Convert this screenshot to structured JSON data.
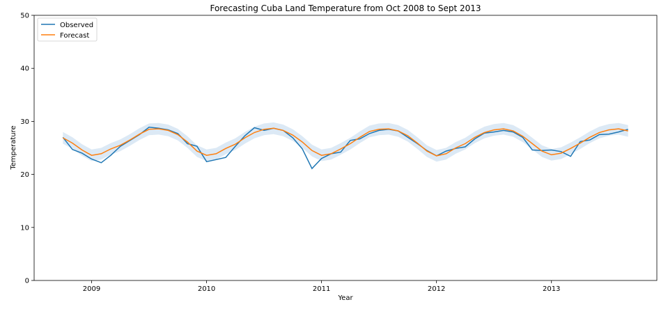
{
  "chart_data": {
    "type": "line",
    "title": "Forecasting Cuba Land Temperature from Oct 2008 to Sept 2013",
    "xlabel": "Year",
    "ylabel": "Temperature",
    "xticks": [
      "2009",
      "2010",
      "2011",
      "2012",
      "2013"
    ],
    "yticks": [
      "0",
      "10",
      "20",
      "30",
      "40",
      "50"
    ],
    "ylim": [
      0,
      50
    ],
    "xlim": [
      "2008-07-01",
      "2013-12-01"
    ],
    "x": [
      "2008-10",
      "2008-11",
      "2008-12",
      "2009-01",
      "2009-02",
      "2009-03",
      "2009-04",
      "2009-05",
      "2009-06",
      "2009-07",
      "2009-08",
      "2009-09",
      "2009-10",
      "2009-11",
      "2009-12",
      "2010-01",
      "2010-02",
      "2010-03",
      "2010-04",
      "2010-05",
      "2010-06",
      "2010-07",
      "2010-08",
      "2010-09",
      "2010-10",
      "2010-11",
      "2010-12",
      "2011-01",
      "2011-02",
      "2011-03",
      "2011-04",
      "2011-05",
      "2011-06",
      "2011-07",
      "2011-08",
      "2011-09",
      "2011-10",
      "2011-11",
      "2011-12",
      "2012-01",
      "2012-02",
      "2012-03",
      "2012-04",
      "2012-05",
      "2012-06",
      "2012-07",
      "2012-08",
      "2012-09",
      "2012-10",
      "2012-11",
      "2012-12",
      "2013-01",
      "2013-02",
      "2013-03",
      "2013-04",
      "2013-05",
      "2013-06",
      "2013-07",
      "2013-08",
      "2013-09"
    ],
    "series": [
      {
        "name": "Observed",
        "color": "#1f77b4",
        "values": [
          27.0,
          24.7,
          24.0,
          22.9,
          22.2,
          23.6,
          25.3,
          26.4,
          27.5,
          28.9,
          28.7,
          28.4,
          27.7,
          25.8,
          25.3,
          22.4,
          22.8,
          23.2,
          25.3,
          27.3,
          28.8,
          28.3,
          28.7,
          28.3,
          26.9,
          24.8,
          21.1,
          23.0,
          23.9,
          24.2,
          26.4,
          26.7,
          27.7,
          28.3,
          28.5,
          28.2,
          27.0,
          25.8,
          24.5,
          23.5,
          24.4,
          24.9,
          25.2,
          26.7,
          27.8,
          28.0,
          28.3,
          28.0,
          27.0,
          24.6,
          24.5,
          24.6,
          24.3,
          23.4,
          26.2,
          26.5,
          27.5,
          27.6,
          28.0,
          28.5
        ]
      },
      {
        "name": "Forecast",
        "color": "#ff7f0e",
        "band_color": "#dce9f5",
        "values": [
          26.9,
          25.9,
          24.6,
          23.6,
          23.9,
          24.8,
          25.5,
          26.5,
          27.6,
          28.5,
          28.6,
          28.3,
          27.5,
          26.1,
          24.4,
          23.6,
          23.9,
          24.9,
          25.7,
          26.9,
          27.9,
          28.5,
          28.7,
          28.3,
          27.4,
          26.1,
          24.5,
          23.6,
          23.9,
          24.8,
          25.8,
          27.0,
          28.1,
          28.5,
          28.6,
          28.2,
          27.3,
          25.9,
          24.4,
          23.5,
          23.9,
          25.0,
          25.8,
          27.0,
          27.9,
          28.4,
          28.6,
          28.2,
          27.2,
          25.8,
          24.4,
          23.7,
          24.0,
          24.9,
          25.9,
          27.0,
          27.9,
          28.4,
          28.6,
          28.2
        ],
        "band_halfwidth": 1.1
      }
    ],
    "legend_position": "upper-left",
    "grid": false
  }
}
